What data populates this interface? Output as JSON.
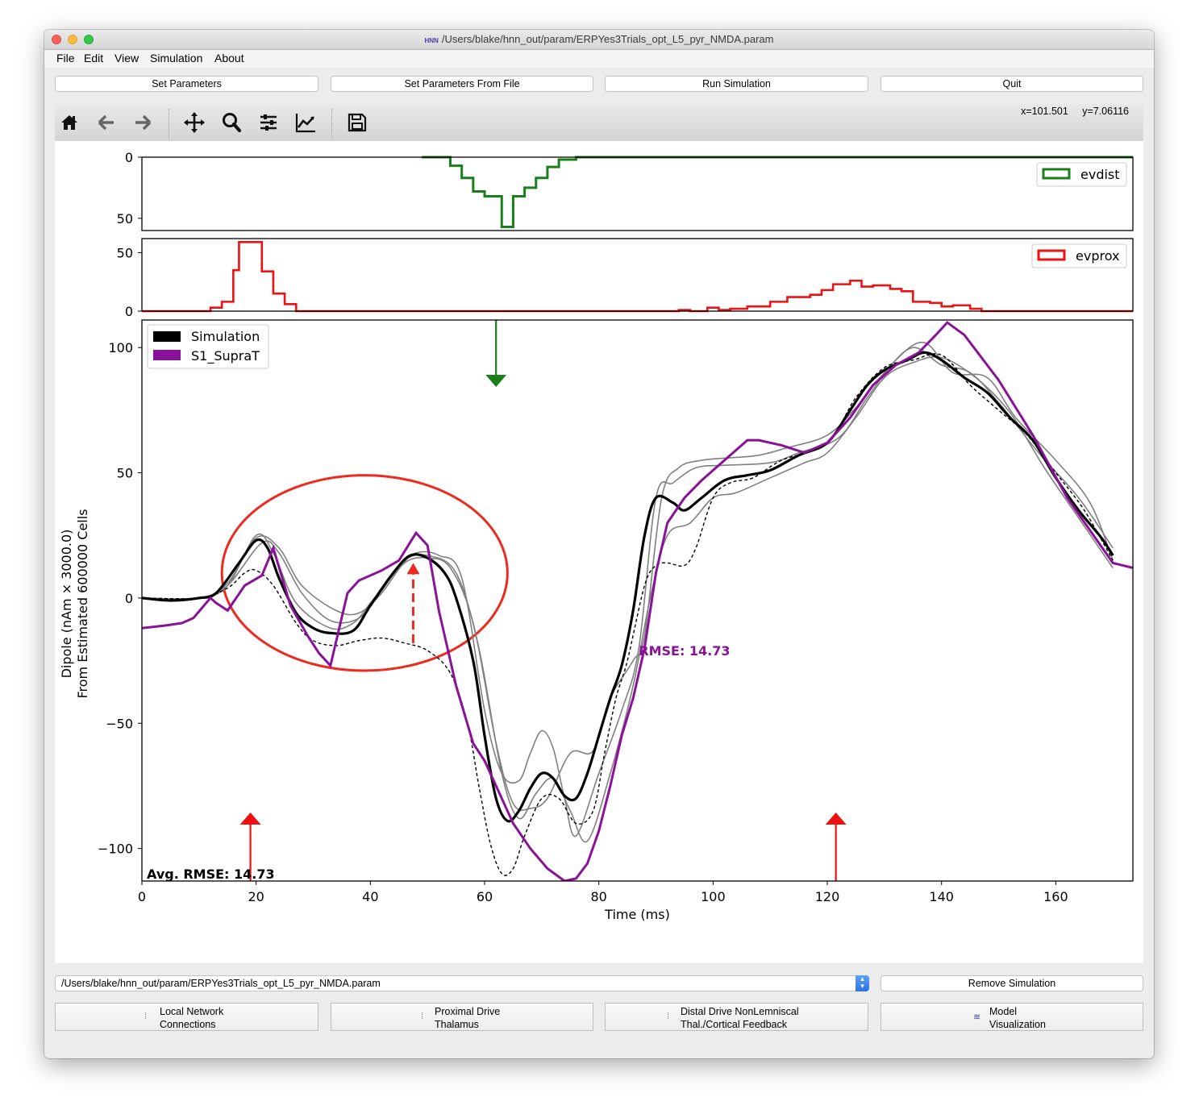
{
  "window": {
    "title": "/Users/blake/hnn_out/param/ERPYes3Trials_opt_L5_pyr_NMDA.param",
    "logo_text": "HNN"
  },
  "menu": [
    "File",
    "Edit",
    "View",
    "Simulation",
    "About"
  ],
  "buttons": {
    "set_parameters": "Set Parameters",
    "set_parameters_from_file": "Set Parameters From File",
    "run_simulation": "Run Simulation",
    "quit": "Quit",
    "remove_simulation": "Remove Simulation"
  },
  "toolbar": {
    "icons": [
      "home-icon",
      "back-arrow-icon",
      "forward-arrow-icon",
      "pan-icon",
      "zoom-icon",
      "configure-subplots-icon",
      "edit-axis-icon",
      "save-icon"
    ],
    "coord_x": "x=101.501",
    "coord_y": "y=7.06116"
  },
  "simulation_select": {
    "value": "/Users/blake/hnn_out/param/ERPYes3Trials_opt_L5_pyr_NMDA.param"
  },
  "drive_buttons": [
    {
      "line1": "Local Network",
      "line2": "Connections"
    },
    {
      "line1": "Proximal Drive",
      "line2": "Thalamus"
    },
    {
      "line1": "Distal Drive NonLemniscal",
      "line2": "Thal./Cortical Feedback"
    },
    {
      "line1": "Model",
      "line2": "Visualization"
    }
  ],
  "colors": {
    "evdist": "#1a7f1a",
    "evprox": "#ee1111",
    "simulation": "#000000",
    "s1_supra": "#8a1299",
    "trial": "#808080",
    "annotation": "#ee2a1e",
    "select_accent": "#2a72e5"
  },
  "chart_data": [
    {
      "type": "histogram",
      "legend": "evdist",
      "legend_placement": "top-right",
      "y_inverted": true,
      "yticks": [
        "0",
        "50"
      ],
      "ylim": [
        0,
        60
      ],
      "xlim": [
        0,
        173.5
      ],
      "bin_edges": [
        49,
        54,
        56,
        58,
        60,
        63,
        65,
        67,
        69,
        71,
        73,
        76,
        173.5
      ],
      "counts": [
        0,
        7,
        17,
        28,
        32,
        57,
        32,
        25,
        17,
        8,
        2,
        0
      ]
    },
    {
      "type": "histogram",
      "legend": "evprox",
      "legend_placement": "top-right",
      "yticks": [
        "50",
        "0"
      ],
      "ylim": [
        0,
        62
      ],
      "xlim": [
        0,
        173.5
      ],
      "bin_edges": [
        0,
        12,
        14,
        16,
        17,
        21,
        23,
        25,
        27,
        94,
        96,
        99,
        101,
        103,
        106,
        108,
        110,
        113,
        117,
        119,
        121,
        124,
        126,
        128,
        131,
        133,
        135,
        138,
        140,
        142,
        145,
        147,
        173.5
      ],
      "counts": [
        0,
        3,
        8,
        35,
        59,
        34,
        15,
        6,
        0,
        1,
        0,
        3,
        1,
        2,
        4,
        4,
        8,
        12,
        14,
        18,
        23,
        26,
        21,
        22,
        19,
        17,
        8,
        7,
        4,
        5,
        2,
        0
      ]
    },
    {
      "type": "line",
      "xlabel": "Time (ms)",
      "ylabel_line1": "Dipole (nAm × 3000.0)",
      "ylabel_line2": "From Estimated 600000 Cells",
      "xlim": [
        0,
        173.5
      ],
      "ylim": [
        -113,
        111
      ],
      "xticks": [
        0,
        20,
        40,
        60,
        80,
        100,
        120,
        140,
        160
      ],
      "xtick_labels": [
        "0",
        "20",
        "40",
        "60",
        "80",
        "100",
        "120",
        "140",
        "160"
      ],
      "yticks": [
        100,
        50,
        0,
        -50,
        -100
      ],
      "ytick_labels": [
        "100",
        "50",
        "0",
        "−50",
        "−100"
      ],
      "legend_placement": "top-left",
      "rmse_label": "RMSE: 14.73",
      "avg_rmse_label": "Avg. RMSE: 14.73",
      "series": [
        {
          "name": "Simulation",
          "style": "black-thick",
          "x": [
            0,
            5,
            10,
            13,
            17,
            20,
            22,
            24,
            27,
            30,
            33,
            37,
            40,
            44,
            47,
            50,
            53,
            55,
            58,
            60,
            62,
            64,
            66,
            68,
            70,
            72,
            74,
            76,
            78,
            80,
            82,
            84,
            86,
            88,
            90,
            93,
            95,
            98,
            102,
            106,
            110,
            115,
            120,
            124,
            127,
            130,
            134,
            137,
            140,
            144,
            148,
            152,
            156,
            160,
            164,
            168,
            170
          ],
          "y": [
            0,
            -1,
            0,
            2,
            14,
            23,
            20,
            8,
            -6,
            -12,
            -14,
            -13,
            -3,
            10,
            17,
            16,
            10,
            0,
            -25,
            -55,
            -80,
            -89,
            -85,
            -76,
            -70,
            -72,
            -79,
            -80,
            -70,
            -55,
            -40,
            -27,
            -5,
            25,
            40,
            38,
            35,
            40,
            47,
            49,
            51,
            57,
            62,
            75,
            85,
            91,
            95,
            98,
            95,
            88,
            82,
            72,
            63,
            48,
            35,
            24,
            17
          ]
        },
        {
          "name": "S1_SupraT",
          "x": [
            0,
            4,
            7,
            9,
            12,
            13,
            15,
            18,
            21,
            23,
            26,
            29,
            31,
            33,
            36,
            38,
            42,
            45,
            48,
            50,
            52,
            55,
            58,
            60,
            62,
            65,
            68,
            71,
            74,
            76,
            78,
            80,
            82,
            84,
            86,
            88,
            90,
            92,
            95,
            98,
            102,
            106,
            108,
            112,
            116,
            120,
            124,
            128,
            132,
            136,
            139,
            141,
            144,
            150,
            156,
            162,
            170,
            173.5
          ],
          "y": [
            -12,
            -11,
            -10,
            -8,
            0,
            -2,
            -5,
            5,
            9,
            20,
            -3,
            -15,
            -22,
            -27,
            2,
            7,
            11,
            15,
            26,
            21,
            -5,
            -35,
            -58,
            -65,
            -75,
            -90,
            -100,
            -108,
            -113,
            -112,
            -106,
            -93,
            -75,
            -55,
            -40,
            -20,
            10,
            30,
            40,
            47,
            55,
            63,
            63,
            61,
            58,
            62,
            72,
            85,
            93,
            98,
            105,
            110,
            105,
            87,
            65,
            40,
            14,
            12
          ]
        },
        {
          "name": "Trial 1",
          "style": "gray-thin",
          "x": [
            0,
            10,
            15,
            20,
            23,
            27,
            33,
            37,
            40,
            45,
            48,
            52,
            56,
            60,
            63,
            66,
            68,
            70,
            72,
            74,
            76,
            80,
            84,
            87,
            90,
            93,
            97,
            102,
            110,
            115,
            122,
            127,
            132,
            137,
            142,
            148,
            153,
            160,
            166,
            170
          ],
          "y": [
            0,
            0,
            5,
            25,
            18,
            -2,
            -12,
            -10,
            -2,
            12,
            18,
            17,
            8,
            -45,
            -70,
            -73,
            -62,
            -53,
            -60,
            -80,
            -95,
            -70,
            -45,
            -20,
            40,
            46,
            52,
            53,
            54,
            58,
            64,
            80,
            95,
            102,
            90,
            88,
            72,
            55,
            38,
            15
          ]
        },
        {
          "name": "Trial 2",
          "style": "gray-thin",
          "x": [
            0,
            10,
            15,
            20,
            24,
            28,
            34,
            38,
            42,
            46,
            50,
            54,
            58,
            62,
            65,
            68,
            71,
            75,
            79,
            82,
            86,
            88,
            91,
            94,
            98,
            103,
            108,
            113,
            120,
            125,
            130,
            135,
            140,
            145,
            150,
            157,
            164,
            170
          ],
          "y": [
            0,
            0,
            6,
            24,
            20,
            5,
            -5,
            -6,
            2,
            14,
            16,
            12,
            -10,
            -58,
            -82,
            -84,
            -80,
            -62,
            -61,
            -40,
            -25,
            -15,
            40,
            52,
            55,
            56,
            57,
            60,
            65,
            76,
            90,
            100,
            93,
            90,
            78,
            58,
            40,
            20
          ]
        },
        {
          "name": "Trial 3",
          "style": "gray-thin",
          "x": [
            0,
            10,
            15,
            21,
            24,
            28,
            33,
            38,
            42,
            46,
            50,
            55,
            59,
            63,
            66,
            69,
            72,
            75,
            78,
            82,
            86,
            89,
            92,
            96,
            100,
            104,
            110,
            116,
            120,
            125,
            130,
            135,
            140,
            146,
            152,
            158,
            164,
            170
          ],
          "y": [
            0,
            0,
            5,
            22,
            18,
            2,
            -9,
            -8,
            3,
            15,
            17,
            10,
            -20,
            -70,
            -88,
            -78,
            -72,
            -85,
            -97,
            -70,
            -35,
            0,
            25,
            30,
            40,
            42,
            48,
            54,
            58,
            72,
            88,
            94,
            96,
            88,
            74,
            52,
            32,
            12
          ]
        },
        {
          "name": "Trial mean",
          "style": "black-dashed",
          "x": [
            0,
            10,
            15,
            18,
            20,
            23,
            27,
            30,
            34,
            38,
            42,
            46,
            50,
            54,
            57,
            59,
            61,
            63,
            65,
            67,
            70,
            73,
            76,
            79,
            81,
            83,
            85,
            88,
            90,
            92,
            95,
            97,
            100,
            103,
            107,
            112,
            120,
            125,
            130,
            135,
            140,
            145,
            150,
            155,
            160,
            165,
            170
          ],
          "y": [
            0,
            0,
            4,
            10,
            11,
            5,
            -10,
            -17,
            -19,
            -17,
            -16,
            -18,
            -21,
            -30,
            -50,
            -75,
            -98,
            -110,
            -108,
            -95,
            -80,
            -80,
            -90,
            -85,
            -62,
            -40,
            -25,
            5,
            13,
            14,
            13,
            20,
            40,
            46,
            48,
            55,
            62,
            80,
            92,
            95,
            97,
            85,
            75,
            65,
            50,
            35,
            15
          ]
        }
      ],
      "annotations": {
        "evdist_arrow_x": 62,
        "evprox_arrows_x": [
          19,
          121.5
        ],
        "red_dashed_arrow": {
          "x": 47.5,
          "y_from": -18,
          "y_to": 14
        },
        "red_ellipse": {
          "cx": 39,
          "cy": 10,
          "rx": 25,
          "ry": 39
        },
        "rmse_pos": {
          "x": 87,
          "y": -21
        }
      }
    }
  ]
}
